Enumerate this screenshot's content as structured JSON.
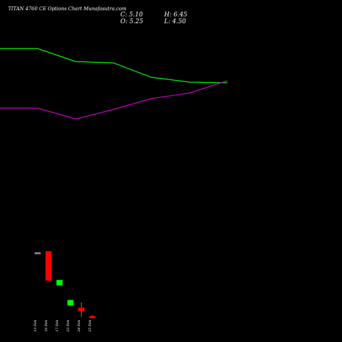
{
  "header": {
    "title": "TITAN 4760 CE Options Chart Munafasutra.com",
    "close": "C: 5.10",
    "high": "H: 6.45",
    "open": "O: 5.25",
    "low": "L: 4.50"
  },
  "chart_data": {
    "type": "candlestick",
    "title": "TITAN 4760 CE Options Chart Munafasutra.com",
    "x_tick_labels": [
      "13 Feb",
      "16 Feb",
      "17 Feb",
      "23 Feb",
      "24 Feb",
      "25 Feb"
    ],
    "candles": [
      {
        "date": "13 Feb",
        "open": 72.0,
        "high": 72.0,
        "low": 72.0,
        "close": 72.0,
        "color": "#808080"
      },
      {
        "date": "16 Feb",
        "open": 73.0,
        "high": 73.0,
        "low": 43.0,
        "close": 43.0,
        "color": "#ff0000"
      },
      {
        "date": "17 Feb",
        "open": 38.0,
        "high": 43.0,
        "low": 38.0,
        "close": 43.0,
        "color": "#00ff00"
      },
      {
        "date": "23 Feb",
        "open": 17.0,
        "high": 23.0,
        "low": 17.0,
        "close": 22.0,
        "color": "#00ff00"
      },
      {
        "date": "24 Feb",
        "open": 14.0,
        "high": 20.0,
        "low": 5.0,
        "close": 11.0,
        "color": "#ff0000"
      },
      {
        "date": "25 Feb",
        "open": 5.25,
        "high": 6.45,
        "low": 4.5,
        "close": 5.1,
        "color": "#ff0000"
      }
    ],
    "series": [
      {
        "color": "#00ff00",
        "x": [
          -1,
          0,
          1,
          2,
          3,
          4,
          5
        ],
        "values": [
          259,
          259,
          240,
          238,
          217,
          210,
          209
        ]
      },
      {
        "color": "#cc00cc",
        "x": [
          -1,
          0,
          1,
          2,
          3,
          4,
          5
        ],
        "values": [
          172,
          172,
          156,
          170,
          186,
          194,
          212
        ]
      }
    ],
    "grid": false,
    "y_range": [
      0,
      290
    ]
  }
}
